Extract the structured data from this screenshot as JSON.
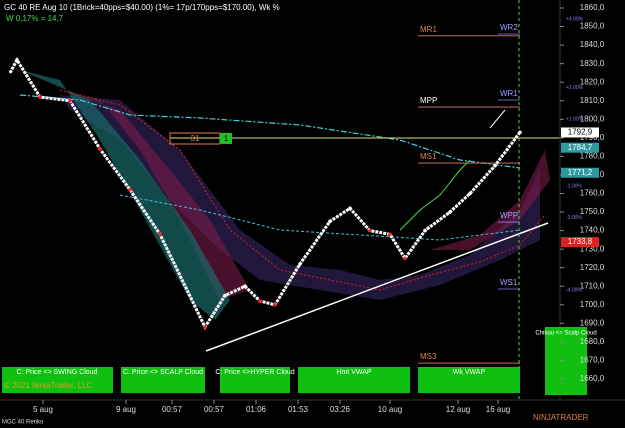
{
  "chart_data": {
    "type": "renko",
    "title": "GC 40 RE Aug 10 (1Brick=40pps=$40.00)  (1%= 17p/170pps=$170.00), Wk %",
    "subtitle": "W 0,17% = 14,7",
    "ylim": [
      1655,
      1865
    ],
    "yticks": [
      {
        "value": 1860,
        "label": "1860,0"
      },
      {
        "value": 1850,
        "label": "1850,0"
      },
      {
        "value": 1840,
        "label": "1840,0"
      },
      {
        "value": 1830,
        "label": "1830,0"
      },
      {
        "value": 1820,
        "label": "1820,0"
      },
      {
        "value": 1810,
        "label": "1810,0"
      },
      {
        "value": 1800,
        "label": "1800,0"
      },
      {
        "value": 1790,
        "label": "1790,0"
      },
      {
        "value": 1780,
        "label": "1780,0"
      },
      {
        "value": 1770,
        "label": "1770,0"
      },
      {
        "value": 1760,
        "label": "1760,0"
      },
      {
        "value": 1750,
        "label": "1750,0"
      },
      {
        "value": 1740,
        "label": "1740,0"
      },
      {
        "value": 1730,
        "label": "1730,0"
      },
      {
        "value": 1720,
        "label": "1720,0"
      },
      {
        "value": 1710,
        "label": "1710,0"
      },
      {
        "value": 1700,
        "label": "1700,0"
      },
      {
        "value": 1690,
        "label": "1690,0"
      },
      {
        "value": 1680,
        "label": "1680,0"
      },
      {
        "value": 1670,
        "label": "1670,0"
      },
      {
        "value": 1660,
        "label": "1660,0"
      }
    ],
    "xlim": [
      0,
      560
    ],
    "xticks": [
      {
        "value": 43,
        "label": "5 aug"
      },
      {
        "value": 126,
        "label": "9 aug"
      },
      {
        "value": 172,
        "label": "00:57"
      },
      {
        "value": 214,
        "label": "00:57"
      },
      {
        "value": 256,
        "label": "01:06"
      },
      {
        "value": 298,
        "label": "01:53"
      },
      {
        "value": 340,
        "label": "03:26"
      },
      {
        "value": 390,
        "label": "10 aug"
      },
      {
        "value": 458,
        "label": "12 aug"
      },
      {
        "value": 498,
        "label": "16 aug"
      }
    ],
    "price": {
      "x": [
        10,
        17,
        40,
        70,
        100,
        130,
        160,
        205,
        225,
        245,
        260,
        275,
        300,
        330,
        350,
        370,
        390,
        405,
        425,
        450,
        470,
        495,
        520
      ],
      "values": [
        1825,
        1832,
        1812,
        1810,
        1784,
        1762,
        1738,
        1688,
        1705,
        1710,
        1702,
        1700,
        1722,
        1745,
        1752,
        1740,
        1738,
        1725,
        1740,
        1750,
        1760,
        1775,
        1793
      ]
    },
    "price_tags": [
      {
        "value": 1792.9,
        "label": "1792,9",
        "color": "#ffffff"
      },
      {
        "value": 1784.7,
        "label": "1784,7",
        "color": "#2e9aa0"
      },
      {
        "value": 1771.2,
        "label": "1771,2",
        "color": "#2e9aa0"
      },
      {
        "value": 1733.8,
        "label": "1733,8",
        "color": "#e02020"
      }
    ],
    "pivot_levels": [
      {
        "label": "MR1",
        "value": 1845
      },
      {
        "label": "WR2",
        "value": 1846
      },
      {
        "label": "MPP",
        "value": 1806.6
      },
      {
        "label": "WR1",
        "value": 1810.4
      },
      {
        "label": "MS1",
        "value": 1776.4
      },
      {
        "label": "WPP",
        "value": 1744.6
      },
      {
        "label": "WS1",
        "value": 1708.5
      },
      {
        "label": "MS3",
        "value": 1668.6
      }
    ],
    "percent_levels": [
      {
        "label": "+4.00%",
        "value": 1854
      },
      {
        "label": "+2.00%",
        "value": 1817
      },
      {
        "label": "+1.00%",
        "value": 1800
      },
      {
        "label": "-1.00%",
        "value": 1764
      },
      {
        "label": "-2.00%",
        "value": 1747
      },
      {
        "label": "-4.00%",
        "value": 1708
      }
    ],
    "brick_counter": [
      "31",
      "1"
    ],
    "buttons": [
      "C: Price <> SWING Cloud",
      "C: Price <> SCALP Cloud",
      "C: Price <>HYPER Cloud",
      "Hmt VWAP",
      "Wk VWAP",
      "Chikou <> Scalp Cloud"
    ],
    "copyright": "© 2021 NinjaTrader, LLC",
    "instrument": "MGC 40 Renko",
    "logo": "NINJATRADER"
  }
}
